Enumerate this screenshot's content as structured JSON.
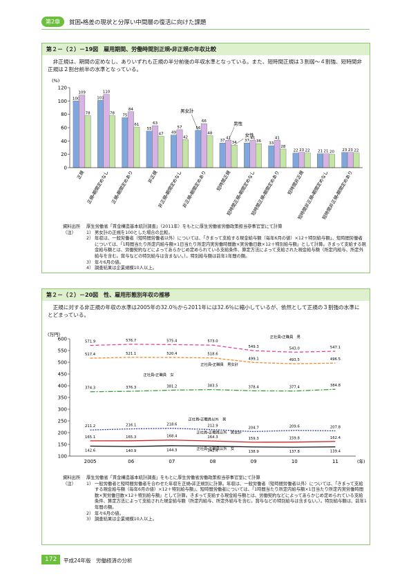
{
  "header": {
    "chapter": "第2章",
    "title": "貧困・格差の現状と分厚い中間層の復活に向けた課題"
  },
  "figures": [
    {
      "label": "第２－（２）－19図",
      "title": "雇用期間、労働時間別正規・非正規の年収比較",
      "lead": "非正規は、期間の定めなし、ありいずれも正規の半分前後の年収水準となっている。また、短時間正規は３割弱～４割強、短時間非正規は２割台前半の水準となっている。",
      "source_label": "資料出所",
      "source": "厚生労働省「賃金構造基本統計調査」（2011年）をもとに厚生労働省労働政策担当参事官室にて計算",
      "notes_label": "（注）",
      "notes": [
        {
          "num": "1）",
          "text": "男女計の正規を100とした場合の比較。"
        },
        {
          "num": "2）",
          "text": "年収は、一般労働者（短時間労働者以外）については、「きまって支給する現金給与額（毎年6月の値）×12＋特別給与額」、短時間労働者については、「1時間当たり所定内給与額×1日当たり所定内実労働時間数×実労働日数×12＋特別給与額」として計算。きまって支給する現金給与額とは、労働契約などによってあらかじめ定められている支給条件、算定方法によって支給された現金給与額（所定内給与、所定外給与を含む。賞与などの特別給与は含まない。）。特別給与額は前年1年間の額。"
        },
        {
          "num": "3）",
          "text": "年々6月の値。"
        },
        {
          "num": "4）",
          "text": "調査結果は企業規模10人以上。"
        }
      ]
    },
    {
      "label": "第２－（２）－20図",
      "title": "性、雇用形態別年収の推移",
      "lead": "正規に対する非正規の年収の水準は2005年の32.0％から2011年には32.6％に縮小しているが、依然として正規の３割強の水準にとどまっている。",
      "source_label": "資料出所",
      "source": "厚生労働省「賃金構造基本統計調査」をもとに厚生労働省労働政策担当参事官室にて計算",
      "notes_label": "（注）",
      "notes": [
        {
          "num": "1）",
          "text": "一般労働者と短時間労働者を合わせた年収を正規・非正規別に計算。年収は、一般労働者（短時間労働者以外）については、「きまって支給する現金給与額（毎年6月の値）×12＋特別給与額」、短時間労働者については、「1時間当たり所定内給与額×1日当たり所定内実労働時間数×実労働日数×12＋特別給与額」として計算。きまって支給する現金給与額とは、労働契約などによってあらかじめ定められている支給条件、算定方法によって支給された現金給与額（所定内給与、所定外給与を含む。賞与などの特別給与は含まない。）。特別給与額は、前年1年間の額。"
        },
        {
          "num": "2）",
          "text": "年々6月の値。"
        },
        {
          "num": "3）",
          "text": "調査結果は企業規模10人以上。"
        }
      ]
    }
  ],
  "chart_data": [
    {
      "type": "bar",
      "y_unit": "(%)",
      "categories": [
        "正規",
        "正規・期間定めなし",
        "正規・期間定めあり",
        "非正規",
        "非正規・期間定めなし",
        "非正規・期間定めあり",
        "短時間正規",
        "短時間正規・期間定めなし",
        "短時間正規・期間定めあり",
        "短時間非正規",
        "短時間非正規・期間定めなし",
        "短時間非正規・期間定めあり"
      ],
      "series": [
        {
          "name": "男女計",
          "color": "#7fa7dc",
          "values": [
            100,
            101,
            75,
            55,
            49,
            56,
            37,
            37,
            33,
            22,
            21,
            23
          ]
        },
        {
          "name": "男性",
          "color": "#d7b3e3",
          "values": [
            109,
            110,
            84,
            63,
            57,
            66,
            41,
            41,
            41,
            23,
            21,
            23
          ]
        },
        {
          "name": "女性",
          "color": "#c4e5a4",
          "values": [
            78,
            78,
            61,
            47,
            42,
            48,
            34,
            36,
            28,
            22,
            20,
            22
          ]
        }
      ],
      "ylim": [
        0,
        120
      ],
      "yticks": [
        0,
        20,
        40,
        60,
        80,
        100,
        120
      ],
      "grid": false
    },
    {
      "type": "line",
      "y_unit": "(万円)",
      "x_unit": "(年)",
      "categories": [
        "2005",
        "06",
        "07",
        "08",
        "09",
        "10",
        "11"
      ],
      "series": [
        {
          "name": "正社員・正職員　男",
          "color": "#e0449a",
          "values": [
            571.9,
            576.7,
            575.4,
            573.0,
            549.3,
            543.0,
            547.1
          ],
          "value_labels": [
            "571.9",
            "576.7",
            "575.4",
            "573.0",
            "549.3",
            "543.0",
            "547.1"
          ]
        },
        {
          "name": "正社員・正職員　男女計",
          "color": "#f08a30",
          "values": [
            517.4,
            521.1,
            520.4,
            518.6,
            499.1,
            493.5,
            496.5
          ],
          "value_labels": [
            "517.4",
            "521.1",
            "520.4",
            "518.6",
            "499.1",
            "493.5",
            "496.5"
          ]
        },
        {
          "name": "正社員・正職員　女",
          "color": "#3a9a3a",
          "values": [
            374.3,
            376.3,
            381.2,
            383.5,
            378.4,
            377.4,
            384.8
          ],
          "value_labels": [
            "374.3",
            "376.3",
            "381.2",
            "383.5",
            "378.4",
            "377.4",
            "384.8"
          ]
        },
        {
          "name": "正社員・正職員以外　男",
          "color": "#2a3fa0",
          "values": [
            211.2,
            216.1,
            218.6,
            212.9,
            204.7,
            209.6,
            207.8
          ],
          "value_labels": [
            "211.2",
            "216.1",
            "218.6",
            "212.9",
            "204.7",
            "209.6",
            "207.8"
          ]
        },
        {
          "name": "正社員・正職員以外　男女計",
          "color": "#d02020",
          "values": [
            165.1,
            165.3,
            168.4,
            164.3,
            159.3,
            159.8,
            162.4
          ],
          "value_labels": [
            "165.1",
            "165.3",
            "168.4",
            "164.3",
            "159.3",
            "159.8",
            "162.4"
          ]
        },
        {
          "name": "正社員・正職員以外　女",
          "color": "#111111",
          "values": [
            142.6,
            140.9,
            144.3,
            142.4,
            138.9,
            137.8,
            139.4
          ],
          "value_labels": [
            "142.6",
            "140.9",
            "144.3",
            "142.4",
            "138.9",
            "137.8",
            "139.4"
          ]
        }
      ],
      "ylim": [
        100,
        600
      ],
      "yticks": [
        100,
        150,
        200,
        250,
        300,
        350,
        400,
        450,
        500,
        550,
        600
      ],
      "grid": false
    }
  ],
  "footer": {
    "page": "172",
    "book": "平成24年版　労働経済の分析"
  }
}
